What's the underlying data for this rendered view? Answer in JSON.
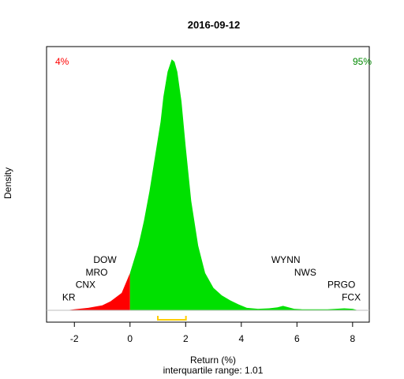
{
  "chart_data": {
    "type": "area",
    "title": "2016-09-12",
    "xlabel": "Return (%)",
    "ylabel": "Density",
    "subtitle": "interquartile range: 1.01",
    "xlim": [
      -3.0,
      8.6
    ],
    "ylim": [
      0,
      0.51
    ],
    "xticks": [
      -2,
      0,
      2,
      4,
      6,
      8
    ],
    "threshold": 0,
    "left_percent": "4%",
    "right_percent": "95%",
    "colors": {
      "negative": "#ff0000",
      "positive": "#00e000",
      "iqr": "#ffcc00",
      "left_pct": "#ff0000",
      "right_pct": "#008800",
      "baseline": "#bebebe"
    },
    "iqr": [
      1.0,
      2.01
    ],
    "density": {
      "x": [
        -2.3,
        -2.0,
        -1.5,
        -1.0,
        -0.7,
        -0.3,
        0.0,
        0.3,
        0.5,
        0.7,
        0.9,
        1.1,
        1.2,
        1.35,
        1.5,
        1.6,
        1.7,
        1.85,
        2.0,
        2.2,
        2.45,
        2.7,
        3.0,
        3.3,
        3.6,
        3.9,
        4.2,
        4.6,
        5.0,
        5.3,
        5.5,
        5.7,
        5.9,
        6.2,
        6.5,
        6.8,
        7.1,
        7.4,
        7.7,
        8.0,
        8.2
      ],
      "y": [
        0.0,
        0.002,
        0.005,
        0.01,
        0.018,
        0.035,
        0.075,
        0.13,
        0.18,
        0.24,
        0.31,
        0.38,
        0.43,
        0.48,
        0.505,
        0.5,
        0.48,
        0.42,
        0.33,
        0.22,
        0.13,
        0.075,
        0.045,
        0.03,
        0.02,
        0.012,
        0.005,
        0.003,
        0.004,
        0.006,
        0.009,
        0.006,
        0.003,
        0.002,
        0.002,
        0.002,
        0.002,
        0.003,
        0.004,
        0.003,
        0.0
      ]
    },
    "stocks": [
      {
        "name": "KR",
        "x": -2.2,
        "y": 0.02
      },
      {
        "name": "CNX",
        "x": -1.6,
        "y": 0.045
      },
      {
        "name": "MRO",
        "x": -1.2,
        "y": 0.07
      },
      {
        "name": "DOW",
        "x": -0.9,
        "y": 0.095
      },
      {
        "name": "WYNN",
        "x": 5.6,
        "y": 0.095
      },
      {
        "name": "NWS",
        "x": 6.3,
        "y": 0.07
      },
      {
        "name": "PRGO",
        "x": 7.6,
        "y": 0.045
      },
      {
        "name": "FCX",
        "x": 7.95,
        "y": 0.02
      }
    ]
  }
}
